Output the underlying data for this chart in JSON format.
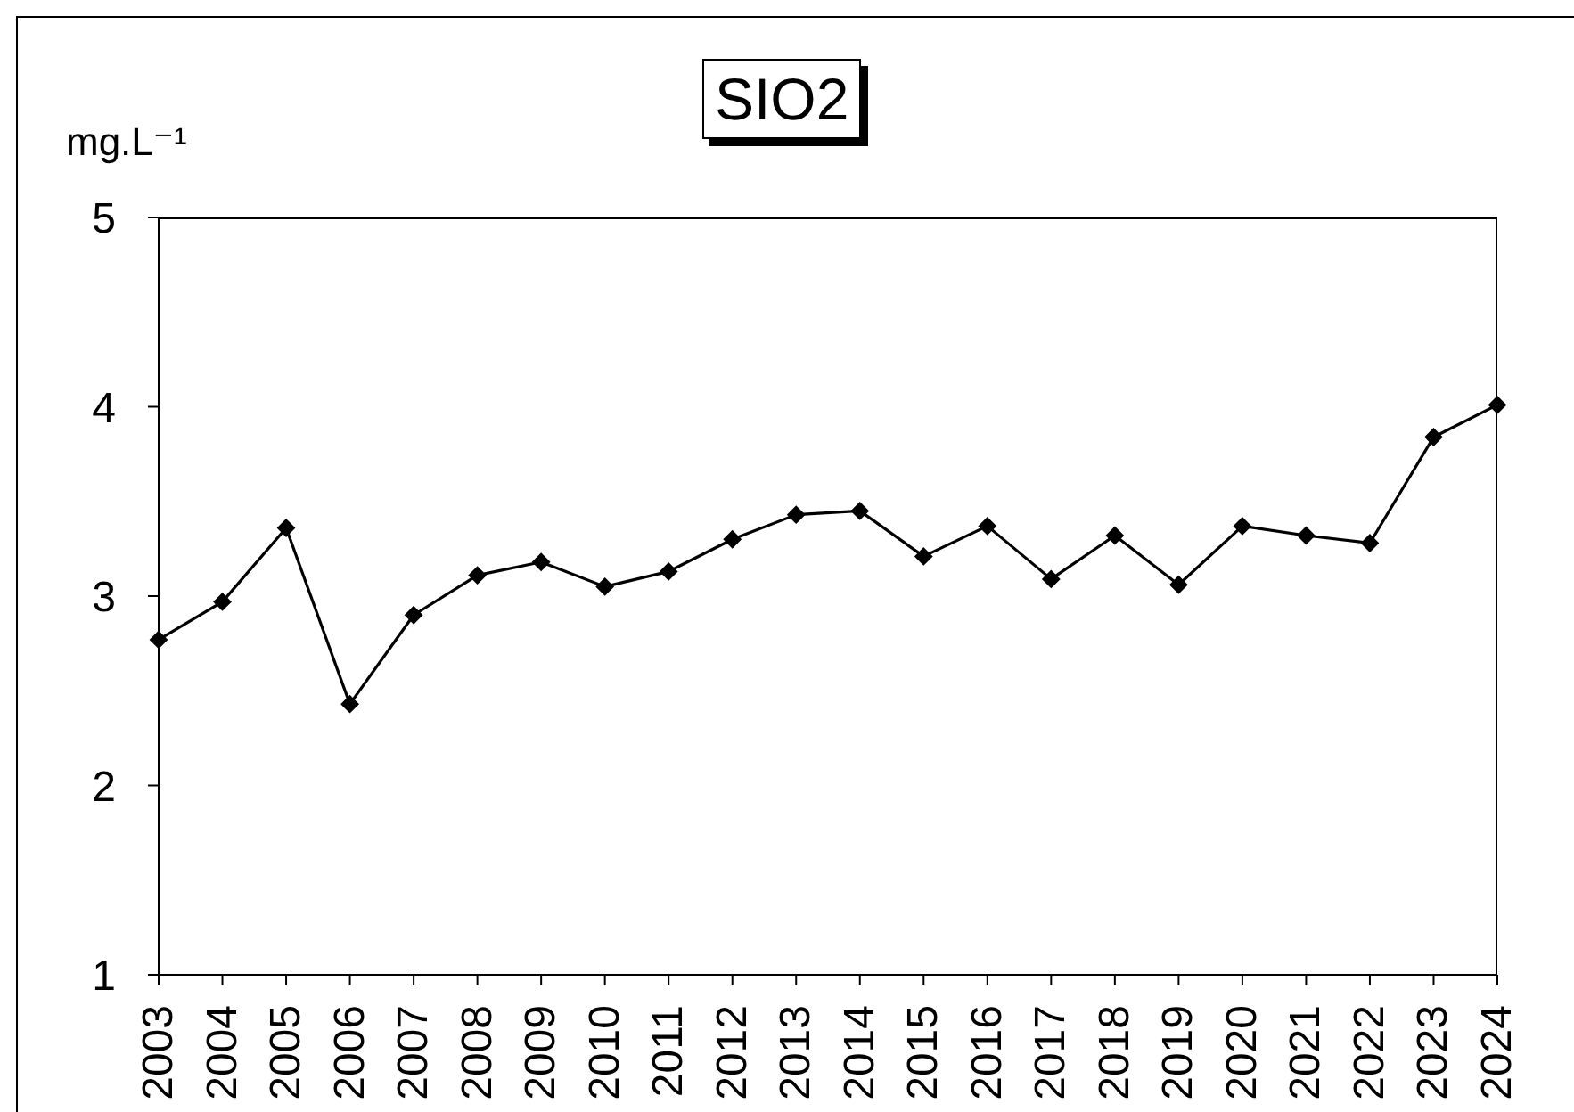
{
  "chart_data": {
    "type": "line",
    "title": "SIO2",
    "ylabel": "mg.L⁻¹",
    "categories": [
      "2003",
      "2004",
      "2005",
      "2006",
      "2007",
      "2008",
      "2009",
      "2010",
      "2011",
      "2012",
      "2013",
      "2014",
      "2015",
      "2016",
      "2017",
      "2018",
      "2019",
      "2020",
      "2021",
      "2022",
      "2023",
      "2024"
    ],
    "series": [
      {
        "color": "#000000",
        "values": [
          2.77,
          2.97,
          3.36,
          2.43,
          2.9,
          3.11,
          3.18,
          3.05,
          3.13,
          3.3,
          3.43,
          3.45,
          3.21,
          3.37,
          3.09,
          3.32,
          3.06,
          3.37,
          3.32,
          3.28,
          3.84,
          4.01
        ]
      }
    ],
    "ylim": [
      1,
      5
    ],
    "yticks": [
      1,
      2,
      3,
      4,
      5
    ],
    "marker": "diamond",
    "line_style": "solid"
  }
}
